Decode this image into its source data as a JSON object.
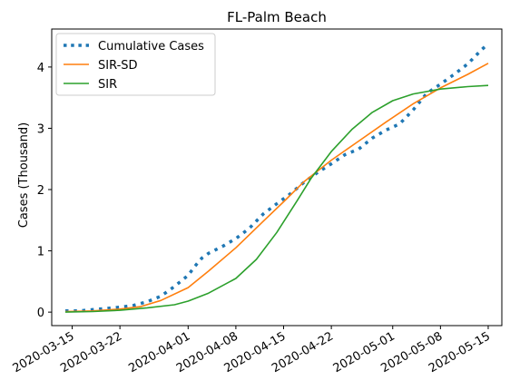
{
  "chart_data": {
    "type": "line",
    "title": "FL-Palm Beach",
    "xlabel": "",
    "ylabel": "Cases (Thousand)",
    "x_range": [
      "2020-03-12",
      "2020-05-17"
    ],
    "ylim": [
      -0.22,
      4.62
    ],
    "y_ticks": [
      0,
      1,
      2,
      3,
      4
    ],
    "x_ticks": [
      "2020-03-15",
      "2020-03-22",
      "2020-04-01",
      "2020-04-08",
      "2020-04-15",
      "2020-04-22",
      "2020-05-01",
      "2020-05-08",
      "2020-05-15"
    ],
    "legend_position": "top-left",
    "series": [
      {
        "name": "Cumulative Cases",
        "color": "#1f77b4",
        "style": "dotted",
        "points": [
          [
            "2020-03-14",
            0.02
          ],
          [
            "2020-03-16",
            0.02
          ],
          [
            "2020-03-18",
            0.04
          ],
          [
            "2020-03-20",
            0.06
          ],
          [
            "2020-03-22",
            0.08
          ],
          [
            "2020-03-24",
            0.11
          ],
          [
            "2020-03-26",
            0.17
          ],
          [
            "2020-03-28",
            0.26
          ],
          [
            "2020-03-30",
            0.42
          ],
          [
            "2020-04-01",
            0.6
          ],
          [
            "2020-04-02",
            0.75
          ],
          [
            "2020-04-03",
            0.88
          ],
          [
            "2020-04-04",
            0.96
          ],
          [
            "2020-04-06",
            1.07
          ],
          [
            "2020-04-08",
            1.2
          ],
          [
            "2020-04-10",
            1.37
          ],
          [
            "2020-04-12",
            1.6
          ],
          [
            "2020-04-14",
            1.77
          ],
          [
            "2020-04-16",
            1.93
          ],
          [
            "2020-04-18",
            2.12
          ],
          [
            "2020-04-20",
            2.28
          ],
          [
            "2020-04-22",
            2.42
          ],
          [
            "2020-04-24",
            2.57
          ],
          [
            "2020-04-26",
            2.66
          ],
          [
            "2020-04-28",
            2.84
          ],
          [
            "2020-04-30",
            2.97
          ],
          [
            "2020-05-02",
            3.07
          ],
          [
            "2020-05-04",
            3.3
          ],
          [
            "2020-05-06",
            3.57
          ],
          [
            "2020-05-08",
            3.72
          ],
          [
            "2020-05-10",
            3.88
          ],
          [
            "2020-05-12",
            4.05
          ],
          [
            "2020-05-14",
            4.28
          ],
          [
            "2020-05-15",
            4.38
          ]
        ]
      },
      {
        "name": "SIR-SD",
        "color": "#ff7f0e",
        "style": "solid",
        "points": [
          [
            "2020-03-14",
            0.01
          ],
          [
            "2020-03-18",
            0.02
          ],
          [
            "2020-03-22",
            0.05
          ],
          [
            "2020-03-25",
            0.09
          ],
          [
            "2020-03-28",
            0.19
          ],
          [
            "2020-04-01",
            0.4
          ],
          [
            "2020-04-04",
            0.67
          ],
          [
            "2020-04-08",
            1.05
          ],
          [
            "2020-04-12",
            1.48
          ],
          [
            "2020-04-15",
            1.8
          ],
          [
            "2020-04-18",
            2.13
          ],
          [
            "2020-04-22",
            2.48
          ],
          [
            "2020-04-26",
            2.79
          ],
          [
            "2020-04-30",
            3.1
          ],
          [
            "2020-05-04",
            3.4
          ],
          [
            "2020-05-08",
            3.66
          ],
          [
            "2020-05-12",
            3.88
          ],
          [
            "2020-05-15",
            4.06
          ]
        ]
      },
      {
        "name": "SIR",
        "color": "#2ca02c",
        "style": "solid",
        "points": [
          [
            "2020-03-14",
            0.0
          ],
          [
            "2020-03-18",
            0.01
          ],
          [
            "2020-03-22",
            0.03
          ],
          [
            "2020-03-26",
            0.07
          ],
          [
            "2020-03-30",
            0.12
          ],
          [
            "2020-04-01",
            0.18
          ],
          [
            "2020-04-04",
            0.31
          ],
          [
            "2020-04-08",
            0.55
          ],
          [
            "2020-04-11",
            0.86
          ],
          [
            "2020-04-14",
            1.3
          ],
          [
            "2020-04-17",
            1.82
          ],
          [
            "2020-04-19",
            2.18
          ],
          [
            "2020-04-22",
            2.62
          ],
          [
            "2020-04-25",
            2.98
          ],
          [
            "2020-04-28",
            3.26
          ],
          [
            "2020-05-01",
            3.45
          ],
          [
            "2020-05-04",
            3.56
          ],
          [
            "2020-05-08",
            3.64
          ],
          [
            "2020-05-12",
            3.68
          ],
          [
            "2020-05-15",
            3.7
          ]
        ]
      }
    ]
  }
}
